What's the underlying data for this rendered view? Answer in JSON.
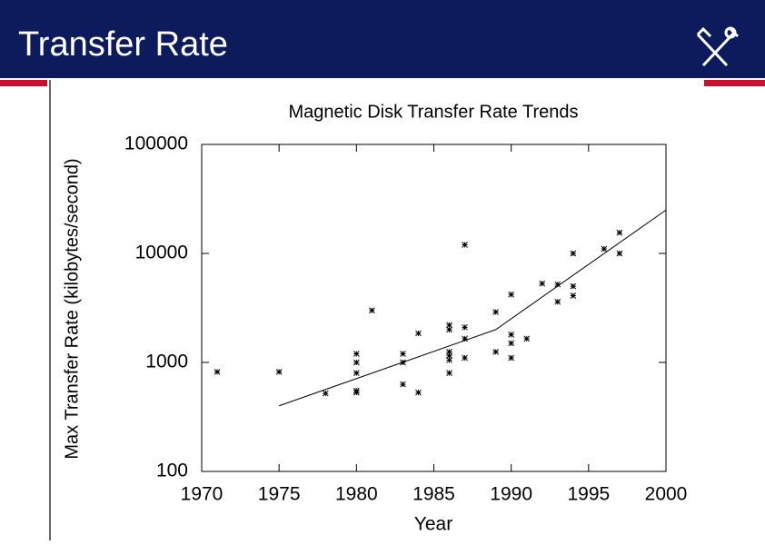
{
  "slide": {
    "title": "Transfer Rate"
  },
  "chart_data": {
    "type": "scatter",
    "title": "Magnetic Disk Transfer Rate Trends",
    "xlabel": "Year",
    "ylabel": "Max Transfer Rate (kilobytes/second)",
    "xlim": [
      1970,
      2000
    ],
    "xticks": [
      1970,
      1975,
      1980,
      1985,
      1990,
      1995,
      2000
    ],
    "ylim": [
      100,
      100000
    ],
    "yticks": [
      100,
      1000,
      10000,
      100000
    ],
    "log_y": true,
    "color": "#000000",
    "points": {
      "x": [
        1971,
        1975,
        1978,
        1980,
        1980,
        1980,
        1980,
        1980,
        1981,
        1983,
        1983,
        1983,
        1984,
        1984,
        1986,
        1986,
        1986,
        1986,
        1986,
        1986,
        1987,
        1987,
        1987,
        1987,
        1989,
        1989,
        1990,
        1990,
        1990,
        1990,
        1991,
        1992,
        1993,
        1993,
        1994,
        1994,
        1994,
        1996,
        1997,
        1997
      ],
      "y": [
        820,
        820,
        520,
        1200,
        1000,
        800,
        530,
        550,
        3000,
        1200,
        1000,
        630,
        1850,
        530,
        2200,
        2000,
        1250,
        1150,
        1050,
        800,
        12000,
        2100,
        1650,
        1100,
        2900,
        1250,
        4200,
        1800,
        1500,
        1100,
        1650,
        5300,
        5200,
        3600,
        10000,
        5000,
        4100,
        11000,
        15500,
        10000
      ]
    },
    "trend": {
      "x": [
        1975,
        1989,
        2000
      ],
      "y": [
        400,
        2000,
        25000
      ]
    }
  }
}
